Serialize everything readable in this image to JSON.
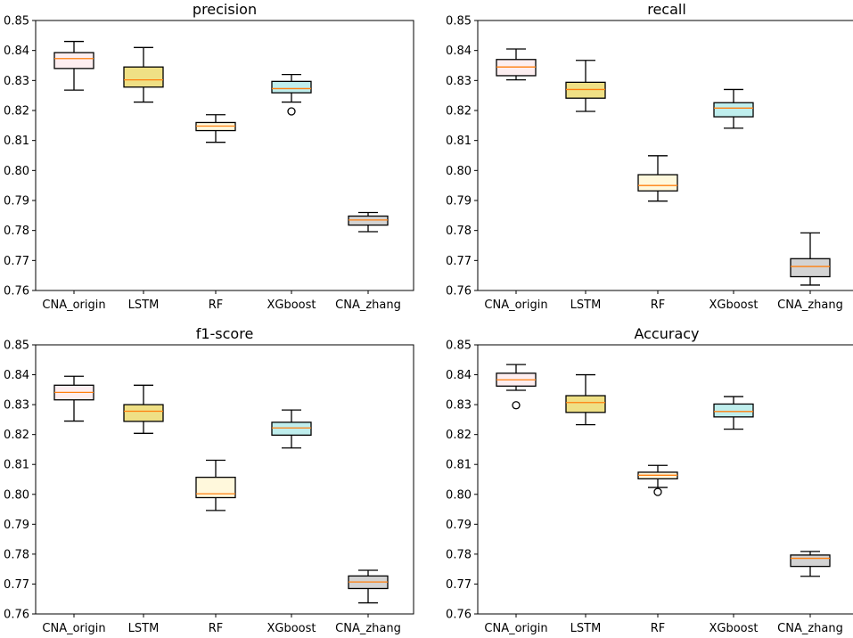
{
  "chart_data": [
    {
      "type": "box",
      "title": "precision",
      "categories": [
        "CNA_origin",
        "LSTM",
        "RF",
        "XGboost",
        "CNA_zhang"
      ],
      "ylim": [
        0.76,
        0.85
      ],
      "yticks": [
        "0.76",
        "0.77",
        "0.78",
        "0.79",
        "0.80",
        "0.81",
        "0.82",
        "0.83",
        "0.84",
        "0.85"
      ],
      "boxes": [
        {
          "whisker_low": 0.8268,
          "q1": 0.834,
          "median": 0.8373,
          "q3": 0.8393,
          "whisker_high": 0.843,
          "fliers": []
        },
        {
          "whisker_low": 0.8228,
          "q1": 0.8278,
          "median": 0.8302,
          "q3": 0.8345,
          "whisker_high": 0.841,
          "fliers": []
        },
        {
          "whisker_low": 0.8094,
          "q1": 0.8133,
          "median": 0.8148,
          "q3": 0.816,
          "whisker_high": 0.8186,
          "fliers": []
        },
        {
          "whisker_low": 0.8228,
          "q1": 0.8259,
          "median": 0.8273,
          "q3": 0.8297,
          "whisker_high": 0.832,
          "fliers": [
            0.8197
          ]
        },
        {
          "whisker_low": 0.7796,
          "q1": 0.7818,
          "median": 0.7835,
          "q3": 0.7848,
          "whisker_high": 0.786,
          "fliers": []
        }
      ]
    },
    {
      "type": "box",
      "title": "recall",
      "categories": [
        "CNA_origin",
        "LSTM",
        "RF",
        "XGboost",
        "CNA_zhang"
      ],
      "ylim": [
        0.76,
        0.85
      ],
      "yticks": [
        "0.76",
        "0.77",
        "0.78",
        "0.79",
        "0.80",
        "0.81",
        "0.82",
        "0.83",
        "0.84",
        "0.85"
      ],
      "boxes": [
        {
          "whisker_low": 0.8302,
          "q1": 0.8316,
          "median": 0.8345,
          "q3": 0.837,
          "whisker_high": 0.8405,
          "fliers": []
        },
        {
          "whisker_low": 0.8197,
          "q1": 0.8241,
          "median": 0.827,
          "q3": 0.8294,
          "whisker_high": 0.8367,
          "fliers": []
        },
        {
          "whisker_low": 0.7898,
          "q1": 0.7932,
          "median": 0.795,
          "q3": 0.7986,
          "whisker_high": 0.8049,
          "fliers": []
        },
        {
          "whisker_low": 0.8141,
          "q1": 0.8179,
          "median": 0.8208,
          "q3": 0.8226,
          "whisker_high": 0.827,
          "fliers": []
        },
        {
          "whisker_low": 0.7618,
          "q1": 0.7646,
          "median": 0.768,
          "q3": 0.7706,
          "whisker_high": 0.7792,
          "fliers": []
        }
      ]
    },
    {
      "type": "box",
      "title": "f1-score",
      "categories": [
        "CNA_origin",
        "LSTM",
        "RF",
        "XGboost",
        "CNA_zhang"
      ],
      "ylim": [
        0.76,
        0.85
      ],
      "yticks": [
        "0.76",
        "0.77",
        "0.78",
        "0.79",
        "0.80",
        "0.81",
        "0.82",
        "0.83",
        "0.84",
        "0.85"
      ],
      "boxes": [
        {
          "whisker_low": 0.8245,
          "q1": 0.8316,
          "median": 0.8341,
          "q3": 0.8365,
          "whisker_high": 0.8395,
          "fliers": []
        },
        {
          "whisker_low": 0.8204,
          "q1": 0.8244,
          "median": 0.8278,
          "q3": 0.83,
          "whisker_high": 0.8365,
          "fliers": []
        },
        {
          "whisker_low": 0.7946,
          "q1": 0.7989,
          "median": 0.8002,
          "q3": 0.8057,
          "whisker_high": 0.8114,
          "fliers": []
        },
        {
          "whisker_low": 0.8155,
          "q1": 0.8198,
          "median": 0.8222,
          "q3": 0.8241,
          "whisker_high": 0.8282,
          "fliers": []
        },
        {
          "whisker_low": 0.7637,
          "q1": 0.7685,
          "median": 0.7707,
          "q3": 0.7727,
          "whisker_high": 0.7746,
          "fliers": []
        }
      ]
    },
    {
      "type": "box",
      "title": "Accuracy",
      "categories": [
        "CNA_origin",
        "LSTM",
        "RF",
        "XGboost",
        "CNA_zhang"
      ],
      "ylim": [
        0.76,
        0.85
      ],
      "yticks": [
        "0.76",
        "0.77",
        "0.78",
        "0.79",
        "0.80",
        "0.81",
        "0.82",
        "0.83",
        "0.84",
        "0.85"
      ],
      "boxes": [
        {
          "whisker_low": 0.8348,
          "q1": 0.8362,
          "median": 0.8383,
          "q3": 0.8405,
          "whisker_high": 0.8434,
          "fliers": [
            0.8298
          ]
        },
        {
          "whisker_low": 0.8233,
          "q1": 0.8274,
          "median": 0.8307,
          "q3": 0.833,
          "whisker_high": 0.84,
          "fliers": []
        },
        {
          "whisker_low": 0.8023,
          "q1": 0.8052,
          "median": 0.8064,
          "q3": 0.8074,
          "whisker_high": 0.8097,
          "fliers": [
            0.8008
          ]
        },
        {
          "whisker_low": 0.8218,
          "q1": 0.8259,
          "median": 0.8277,
          "q3": 0.8302,
          "whisker_high": 0.8327,
          "fliers": []
        },
        {
          "whisker_low": 0.7726,
          "q1": 0.7759,
          "median": 0.7786,
          "q3": 0.7797,
          "whisker_high": 0.7809,
          "fliers": []
        }
      ]
    }
  ],
  "box_colors": [
    "#fdeef0",
    "#efe085",
    "#fff8dc",
    "#bfeeed",
    "#d3d3d3"
  ],
  "median_color": "#ff7f0e",
  "background_color": "#ffffff"
}
